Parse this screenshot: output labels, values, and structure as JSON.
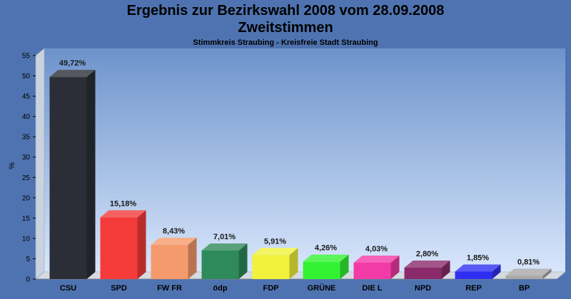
{
  "header": {
    "title_line1": "Ergebnis zur Bezirkswahl 2008 vom 28.09.2008",
    "title_line2": "Zweitstimmen",
    "subtitle": "Stimmkreis Straubing - Kreisfreie Stadt Straubing"
  },
  "chart_data": {
    "type": "bar",
    "title": "Ergebnis zur Bezirkswahl 2008 vom 28.09.2008 Zweitstimmen",
    "subtitle": "Stimmkreis Straubing - Kreisfreie Stadt Straubing",
    "xlabel": "",
    "ylabel": "%",
    "ylim": [
      0,
      55
    ],
    "yticks": [
      0,
      5,
      10,
      15,
      20,
      25,
      30,
      35,
      40,
      45,
      50,
      55
    ],
    "grid": false,
    "categories": [
      "CSU",
      "SPD",
      "FW FR",
      "ödp",
      "FDP",
      "GRÜNE",
      "DIE L",
      "NPD",
      "REP",
      "BP"
    ],
    "values": [
      49.72,
      15.18,
      8.43,
      7.01,
      5.91,
      4.26,
      4.03,
      2.8,
      1.85,
      0.81
    ],
    "value_labels": [
      "49,72%",
      "15,18%",
      "8,43%",
      "7,01%",
      "5,91%",
      "4,26%",
      "4,03%",
      "2,80%",
      "1,85%",
      "0,81%"
    ],
    "colors": [
      "#2b2e36",
      "#f53a3a",
      "#f59a6c",
      "#2e8a5a",
      "#f2f23c",
      "#33f233",
      "#f23ba6",
      "#8a2a6a",
      "#2e2ef2",
      "#a8a8a8"
    ]
  }
}
